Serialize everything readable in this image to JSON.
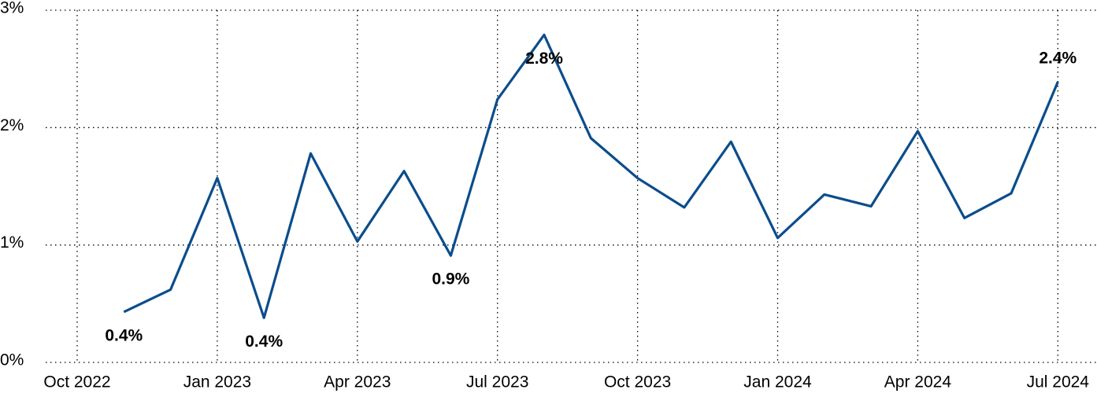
{
  "chart_data": {
    "type": "line",
    "x": [
      "2022-11",
      "2022-12",
      "2023-01",
      "2023-02",
      "2023-03",
      "2023-04",
      "2023-05",
      "2023-06",
      "2023-07",
      "2023-08",
      "2023-09",
      "2023-10",
      "2023-11",
      "2023-12",
      "2024-01",
      "2024-02",
      "2024-03",
      "2024-04",
      "2024-05",
      "2024-06",
      "2024-07"
    ],
    "series": [
      {
        "color": "#0b4d8c",
        "values": [
          0.43,
          0.62,
          1.57,
          0.38,
          1.78,
          1.03,
          1.63,
          0.91,
          2.24,
          2.79,
          1.91,
          1.57,
          1.32,
          1.88,
          1.06,
          1.43,
          1.33,
          1.97,
          1.23,
          1.44,
          2.39
        ],
        "value_labels": [
          "0.4%",
          null,
          null,
          "0.4%",
          null,
          null,
          null,
          "0.9%",
          null,
          "2.8%",
          null,
          null,
          null,
          null,
          null,
          null,
          null,
          null,
          null,
          null,
          "2.4%"
        ]
      }
    ],
    "xticks": [
      {
        "value": "2022-10",
        "label": "Oct 2022"
      },
      {
        "value": "2023-01",
        "label": "Jan 2023"
      },
      {
        "value": "2023-04",
        "label": "Apr 2023"
      },
      {
        "value": "2023-07",
        "label": "Jul 2023"
      },
      {
        "value": "2023-10",
        "label": "Oct 2023"
      },
      {
        "value": "2024-01",
        "label": "Jan 2024"
      },
      {
        "value": "2024-04",
        "label": "Apr 2024"
      },
      {
        "value": "2024-07",
        "label": "Jul 2024"
      }
    ],
    "ylim": [
      0,
      3
    ],
    "yticks": [
      {
        "value": 0,
        "label": "0%"
      },
      {
        "value": 1,
        "label": "1%"
      },
      {
        "value": 2,
        "label": "2%"
      },
      {
        "value": 3,
        "label": "3%"
      }
    ],
    "grid": true
  }
}
